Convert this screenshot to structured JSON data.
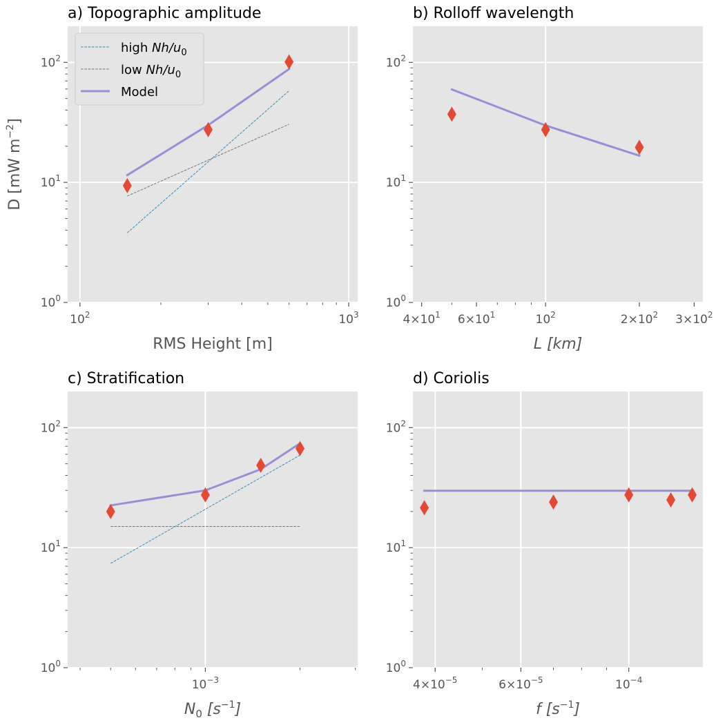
{
  "chart_data": [
    {
      "type": "line",
      "id": "a",
      "title": "a) Topographic amplitude",
      "ylabel": "D [mW m⁻²]",
      "xlabel": "RMS Height [m]",
      "xscale": "log",
      "yscale": "log",
      "xlim": [
        90,
        1080
      ],
      "ylim": [
        1,
        200
      ],
      "xticks": [
        {
          "v": 100,
          "base": "10",
          "exp": "2"
        },
        {
          "v": 1000,
          "base": "10",
          "exp": "3"
        }
      ],
      "yticks": [
        {
          "v": 1,
          "base": "10",
          "exp": "0"
        },
        {
          "v": 10,
          "base": "10",
          "exp": "1"
        },
        {
          "v": 100,
          "base": "10",
          "exp": "2"
        }
      ],
      "grid": true,
      "legend": {
        "placement": "top-left",
        "entries": [
          {
            "base": "high ",
            "italic": "Nh/u",
            "sub": "0",
            "color": "#348ABD",
            "dash": "dashed",
            "width": 1
          },
          {
            "base": "low ",
            "italic": "Nh/u",
            "sub": "0",
            "color": "#777777",
            "dash": "dashed",
            "width": 1
          },
          {
            "base": "Model",
            "italic": "",
            "sub": "",
            "color": "#988ED5",
            "dash": "solid",
            "width": 3
          }
        ]
      },
      "series": [
        {
          "name": "high Nh/u0",
          "style": "high",
          "x": [
            150,
            600
          ],
          "y": [
            3.8,
            58
          ]
        },
        {
          "name": "low Nh/u0",
          "style": "low",
          "x": [
            150,
            600
          ],
          "y": [
            7.7,
            30.5
          ]
        },
        {
          "name": "Model",
          "style": "model",
          "x": [
            150,
            300,
            600
          ],
          "y": [
            11.5,
            30,
            88
          ]
        },
        {
          "name": "",
          "style": "markers",
          "x": [
            150,
            300,
            600
          ],
          "y": [
            9.4,
            27.5,
            101
          ]
        }
      ]
    },
    {
      "type": "line",
      "id": "b",
      "title": "b) Rolloff wavelength",
      "ylabel": "",
      "xlabel": "L [km]",
      "xscale": "log",
      "yscale": "log",
      "xlim": [
        37.5,
        320
      ],
      "ylim": [
        1,
        200
      ],
      "xticks": [
        {
          "v": 40,
          "pre": "4×",
          "base": "10",
          "exp": "1"
        },
        {
          "v": 60,
          "pre": "6×",
          "base": "10",
          "exp": "1"
        },
        {
          "v": 100,
          "base": "10",
          "exp": "2"
        },
        {
          "v": 200,
          "pre": "2×",
          "base": "10",
          "exp": "2"
        },
        {
          "v": 300,
          "pre": "3×",
          "base": "10",
          "exp": "2"
        }
      ],
      "xgrid": [
        100
      ],
      "yticks": [
        {
          "v": 1,
          "base": "10",
          "exp": "0"
        },
        {
          "v": 10,
          "base": "10",
          "exp": "1"
        },
        {
          "v": 100,
          "base": "10",
          "exp": "2"
        }
      ],
      "grid": true,
      "series": [
        {
          "name": "Model",
          "style": "model",
          "x": [
            50,
            100,
            200
          ],
          "y": [
            59.5,
            29.8,
            16.7
          ]
        },
        {
          "name": "",
          "style": "markers",
          "x": [
            50,
            100,
            200
          ],
          "y": [
            37,
            27.5,
            19.6
          ]
        }
      ]
    },
    {
      "type": "line",
      "id": "c",
      "title": "c) Stratification",
      "ylabel": "",
      "xlabel": "N0 [s⁻¹]",
      "xscale": "log",
      "yscale": "log",
      "xlim": [
        0.000365,
        0.00305
      ],
      "ylim": [
        1,
        200
      ],
      "xticks": [
        {
          "v": 0.001,
          "base": "10",
          "exp": "−3"
        }
      ],
      "yticks": [
        {
          "v": 1,
          "base": "10",
          "exp": "0"
        },
        {
          "v": 10,
          "base": "10",
          "exp": "1"
        },
        {
          "v": 100,
          "base": "10",
          "exp": "2"
        }
      ],
      "grid": true,
      "series": [
        {
          "name": "high",
          "style": "high",
          "x": [
            0.0005,
            0.002
          ],
          "y": [
            7.4,
            59
          ]
        },
        {
          "name": "low",
          "style": "low",
          "x": [
            0.0005,
            0.002
          ],
          "y": [
            15,
            15
          ]
        },
        {
          "name": "Model",
          "style": "model",
          "x": [
            0.0005,
            0.001,
            0.0015,
            0.002
          ],
          "y": [
            22.5,
            30,
            45,
            74
          ]
        },
        {
          "name": "",
          "style": "markers",
          "x": [
            0.0005,
            0.001,
            0.0015,
            0.002
          ],
          "y": [
            20,
            27.5,
            48.5,
            67
          ]
        }
      ]
    },
    {
      "type": "line",
      "id": "d",
      "title": "d) Coriolis",
      "ylabel": "",
      "xlabel": "f [s⁻¹]",
      "xscale": "log",
      "yscale": "log",
      "xlim": [
        3.6e-05,
        0.000142
      ],
      "ylim": [
        1,
        200
      ],
      "xticks": [
        {
          "v": 4e-05,
          "pre": "4×",
          "base": "10",
          "exp": "−5"
        },
        {
          "v": 6e-05,
          "pre": "6×",
          "base": "10",
          "exp": "−5"
        },
        {
          "v": 0.0001,
          "base": "10",
          "exp": "−4"
        }
      ],
      "yticks": [
        {
          "v": 1,
          "base": "10",
          "exp": "0"
        },
        {
          "v": 10,
          "base": "10",
          "exp": "1"
        },
        {
          "v": 100,
          "base": "10",
          "exp": "2"
        }
      ],
      "grid": true,
      "series": [
        {
          "name": "Model",
          "style": "model",
          "x": [
            3.8e-05,
            0.000135
          ],
          "y": [
            29.8,
            29.8
          ]
        },
        {
          "name": "",
          "style": "markers",
          "x": [
            3.8e-05,
            7e-05,
            0.0001,
            0.000122,
            0.000135
          ],
          "y": [
            21.5,
            24,
            27.5,
            25,
            27.5
          ]
        }
      ]
    }
  ],
  "colors": {
    "panel_bg": "#E5E5E5",
    "grid": "#FFFFFF",
    "model": "#988ED5",
    "high": "#348ABD",
    "low": "#777777",
    "marker": "#E24A33",
    "tick_text": "#555555"
  }
}
